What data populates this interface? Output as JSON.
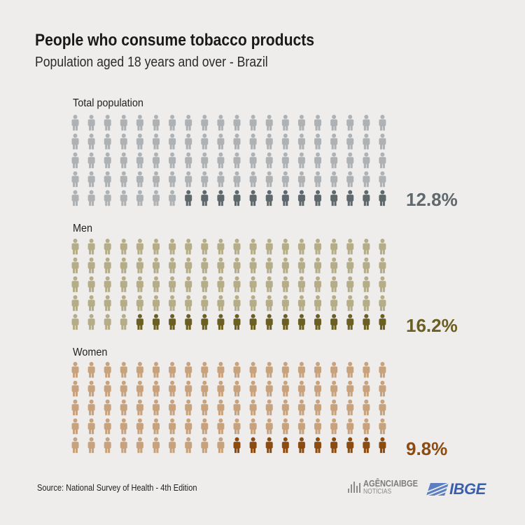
{
  "title": "People who consume tobacco products",
  "subtitle": "Population aged 18 years and over - Brazil",
  "source": "Source: National Survey of Health - 4th Edition",
  "logos": {
    "agencia_prefix": "AGÊNCIA",
    "agencia_brand": "IBGE",
    "agencia_sub": "NOTÍCIAS",
    "ibge": "IBGE"
  },
  "chart_data": {
    "type": "pictogram",
    "icons_per_group": 100,
    "grid": {
      "rows": 5,
      "cols": 20
    },
    "groups": [
      {
        "label": "Total population",
        "value": 12.8,
        "value_label": "12.8%",
        "highlighted_icons": 13,
        "base_color": "#aeb2b4",
        "highlight_color": "#5f686c",
        "text_color": "#5f686c"
      },
      {
        "label": "Men",
        "value": 16.2,
        "value_label": "16.2%",
        "highlighted_icons": 16,
        "base_color": "#b5ac88",
        "highlight_color": "#6b5f22",
        "text_color": "#6b5f22"
      },
      {
        "label": "Women",
        "value": 9.8,
        "value_label": "9.8%",
        "highlighted_icons": 10,
        "base_color": "#c8a27c",
        "highlight_color": "#8c4b10",
        "text_color": "#8c4b10"
      }
    ]
  }
}
